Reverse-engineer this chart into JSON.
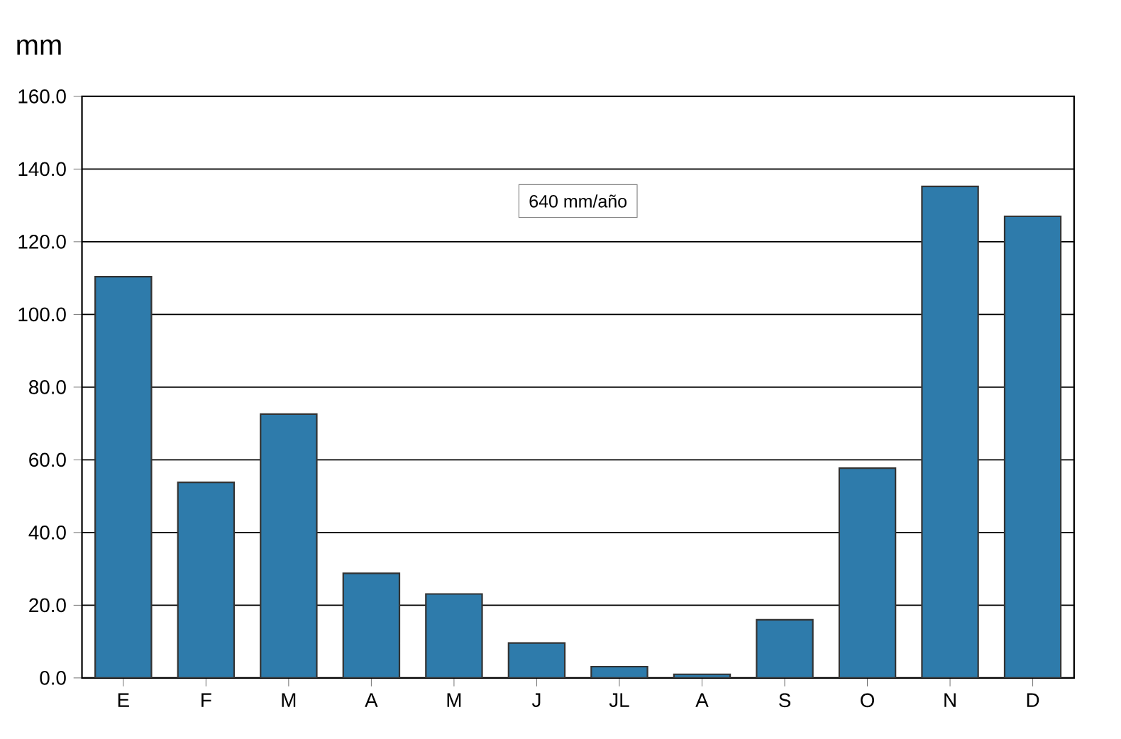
{
  "chart_data": {
    "type": "bar",
    "ylabel": "mm",
    "categories": [
      "E",
      "F",
      "M",
      "A",
      "M",
      "J",
      "JL",
      "A",
      "S",
      "O",
      "N",
      "D"
    ],
    "values": [
      110.4,
      53.8,
      72.6,
      28.8,
      23.1,
      9.6,
      3.1,
      1.0,
      16.0,
      57.7,
      135.2,
      127.0
    ],
    "color": "#2e7bab",
    "ylim": [
      0,
      160
    ],
    "yticks": [
      {
        "value": 0,
        "label": "0.0"
      },
      {
        "value": 20,
        "label": "20.0"
      },
      {
        "value": 40,
        "label": "40.0"
      },
      {
        "value": 60,
        "label": "60.0"
      },
      {
        "value": 80,
        "label": "80.0"
      },
      {
        "value": 100,
        "label": "100.0"
      },
      {
        "value": 120,
        "label": "120.0"
      },
      {
        "value": 140,
        "label": "140.0"
      },
      {
        "value": 160,
        "label": "160.0"
      }
    ],
    "grid": "y",
    "annotations": [
      "640 mm/año"
    ]
  }
}
